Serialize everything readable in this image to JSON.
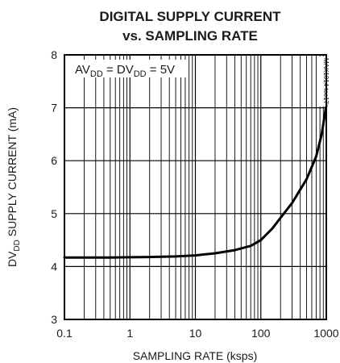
{
  "chart_data": {
    "type": "line",
    "title": "DIGITAL SUPPLY CURRENT",
    "subtitle": "vs. SAMPLING RATE",
    "xlabel": "SAMPLING RATE (ksps)",
    "ylabel_main": "DV",
    "ylabel_sub": "DD",
    "ylabel_rest": " SUPPLY CURRENT (mA)",
    "xscale": "log",
    "xlim": [
      0.1,
      1000
    ],
    "ylim": [
      3,
      8
    ],
    "xticks": [
      "0.1",
      "1",
      "10",
      "100",
      "1000"
    ],
    "yticks": [
      "3",
      "4",
      "5",
      "6",
      "7",
      "8"
    ],
    "grid": true,
    "annotation": {
      "p1": "AV",
      "s1": "DD",
      "p2": " = DV",
      "s2": "DD",
      "p3": " = 5V"
    },
    "watermark": "MAX1014 toc17",
    "series": [
      {
        "x": [
          0.1,
          0.2,
          0.5,
          1,
          2,
          5,
          10,
          20,
          40,
          70,
          100,
          150,
          200,
          300,
          500,
          700,
          850,
          1000
        ],
        "y": [
          4.17,
          4.17,
          4.17,
          4.175,
          4.18,
          4.19,
          4.21,
          4.25,
          4.31,
          4.39,
          4.5,
          4.72,
          4.92,
          5.2,
          5.65,
          6.08,
          6.5,
          7.05
        ]
      }
    ]
  }
}
